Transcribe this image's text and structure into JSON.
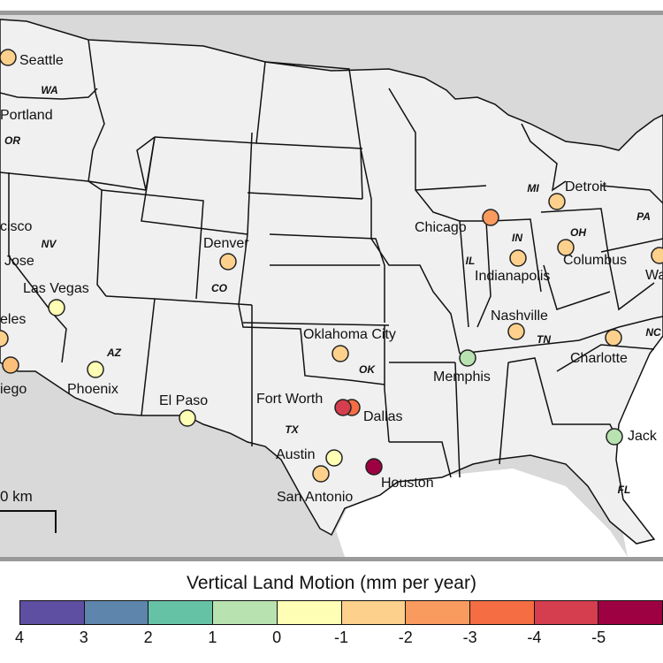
{
  "map": {
    "cities": [
      {
        "name": "Seattle",
        "vlm": -1.5,
        "color": "#fdd08c"
      },
      {
        "name": "Portland",
        "vlm": null
      },
      {
        "name": "San Francisco (partial: \"cisco\")",
        "vlm": null
      },
      {
        "name": "San Jose (partial: \"Jose\")",
        "vlm": null
      },
      {
        "name": "Las Vegas",
        "vlm": -0.5,
        "color": "#fefeb4"
      },
      {
        "name": "Los Angeles (partial: \"eles\")",
        "vlm": -1.5,
        "color": "#fdd08c"
      },
      {
        "name": "San Diego (partial: \"iego\")",
        "vlm": -1.5,
        "color": "#fdc07a"
      },
      {
        "name": "Phoenix",
        "vlm": -0.5,
        "color": "#fefeb4"
      },
      {
        "name": "Denver",
        "vlm": -1.5,
        "color": "#fdd08c"
      },
      {
        "name": "El Paso",
        "vlm": -0.5,
        "color": "#fefeb4"
      },
      {
        "name": "Oklahoma City",
        "vlm": -1.5,
        "color": "#fdd08c"
      },
      {
        "name": "Fort Worth",
        "vlm": -4.5,
        "color": "#d53e4f"
      },
      {
        "name": "Dallas",
        "vlm": -3.5,
        "color": "#f46d43"
      },
      {
        "name": "Austin",
        "vlm": -0.5,
        "color": "#fefeb4"
      },
      {
        "name": "San Antonio",
        "vlm": -1.5,
        "color": "#fdd08c"
      },
      {
        "name": "Houston",
        "vlm": -5.5,
        "color": "#9e0142"
      },
      {
        "name": "Memphis",
        "vlm": 0.5,
        "color": "#b8e2b0"
      },
      {
        "name": "Chicago",
        "vlm": -2.5,
        "color": "#f99a5e"
      },
      {
        "name": "Indianapolis",
        "vlm": -1.5,
        "color": "#fdd08c"
      },
      {
        "name": "Detroit",
        "vlm": -1.5,
        "color": "#fdd08c"
      },
      {
        "name": "Columbus",
        "vlm": -1.5,
        "color": "#fdd08c"
      },
      {
        "name": "Nashville",
        "vlm": -1.5,
        "color": "#fdd08c"
      },
      {
        "name": "Charlotte",
        "vlm": -1.5,
        "color": "#fdd08c"
      },
      {
        "name": "Jacksonville (partial: \"Jack\")",
        "vlm": 0.5,
        "color": "#b8e2b0"
      },
      {
        "name": "Washington (partial: \"Wa\")",
        "vlm": -1.5,
        "color": "#fdd08c"
      }
    ],
    "city_labels": {
      "seattle": "Seattle",
      "portland": "Portland",
      "sf": "cisco",
      "sj": "Jose",
      "lasvegas": "Las Vegas",
      "la": "eles",
      "sd": "iego",
      "phoenix": "Phoenix",
      "denver": "Denver",
      "elpaso": "El Paso",
      "okc": "Oklahoma City",
      "fortworth": "Fort Worth",
      "dallas": "Dallas",
      "austin": "Austin",
      "sanantonio": "San Antonio",
      "houston": "Houston",
      "memphis": "Memphis",
      "chicago": "Chicago",
      "indianapolis": "Indianapolis",
      "detroit": "Detroit",
      "columbus": "Columbus",
      "nashville": "Nashville",
      "charlotte": "Charlotte",
      "jacksonville": "Jack",
      "washington": "Wa"
    },
    "state_labels": {
      "wa": "WA",
      "or": "OR",
      "nv": "NV",
      "az": "AZ",
      "co": "CO",
      "tx": "TX",
      "ok": "OK",
      "il": "IL",
      "in": "IN",
      "oh": "OH",
      "mi": "MI",
      "pa": "PA",
      "tn": "TN",
      "nc": "NC",
      "fl": "FL"
    },
    "scale_bar_label": "0 km",
    "colors": {
      "land_us": "#f0f0f0",
      "land_other": "#d9d9d9",
      "water": "#ffffff",
      "frame": "#9a9a9a"
    }
  },
  "legend": {
    "title": "Vertical Land Motion (mm per year)",
    "tick_labels": [
      "4",
      "3",
      "2",
      "1",
      "0",
      "-1",
      "-2",
      "-3",
      "-4",
      "-5"
    ],
    "bins": [
      {
        "range": "4 to 3",
        "color": "#5e4fa2"
      },
      {
        "range": "3 to 2",
        "color": "#5e86ac"
      },
      {
        "range": "2 to 1",
        "color": "#66c2a5"
      },
      {
        "range": "1 to 0",
        "color": "#b8e2b0"
      },
      {
        "range": "0 to -1",
        "color": "#fefeb4"
      },
      {
        "range": "-1 to -2",
        "color": "#fdd08c"
      },
      {
        "range": "-2 to -3",
        "color": "#f99a5e"
      },
      {
        "range": "-3 to -4",
        "color": "#f46d43"
      },
      {
        "range": "-4 to -5",
        "color": "#d53e4f"
      },
      {
        "range": "-5 to -6",
        "color": "#9e0142"
      }
    ]
  }
}
